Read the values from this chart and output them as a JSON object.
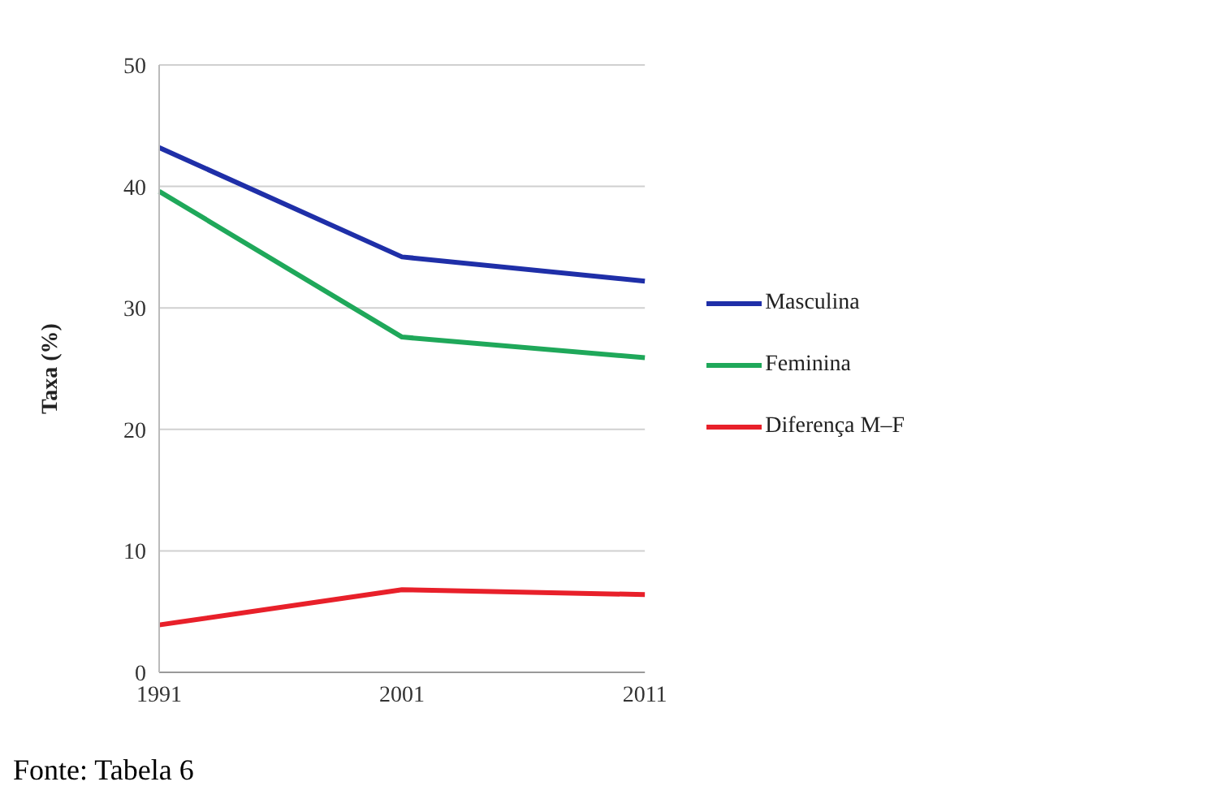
{
  "chart_data": {
    "type": "line",
    "ylabel": "Taxa (%)",
    "categories": [
      "1991",
      "2001",
      "2011"
    ],
    "series": [
      {
        "name": "Masculina",
        "color": "#1f2fa8",
        "values": [
          43.2,
          34.2,
          32.2
        ]
      },
      {
        "name": "Feminina",
        "color": "#1fa85a",
        "values": [
          39.6,
          27.6,
          25.9
        ]
      },
      {
        "name": "Diferença M–F",
        "color": "#e8202a",
        "values": [
          3.9,
          6.8,
          6.4
        ]
      }
    ],
    "ylim": [
      0,
      50
    ],
    "yticks": [
      0,
      10,
      20,
      30,
      40,
      50
    ],
    "grid": "y",
    "legend": "right",
    "marker": "none",
    "line_style": "solid",
    "annotations": [
      "Fonte: Tabela 6"
    ]
  }
}
